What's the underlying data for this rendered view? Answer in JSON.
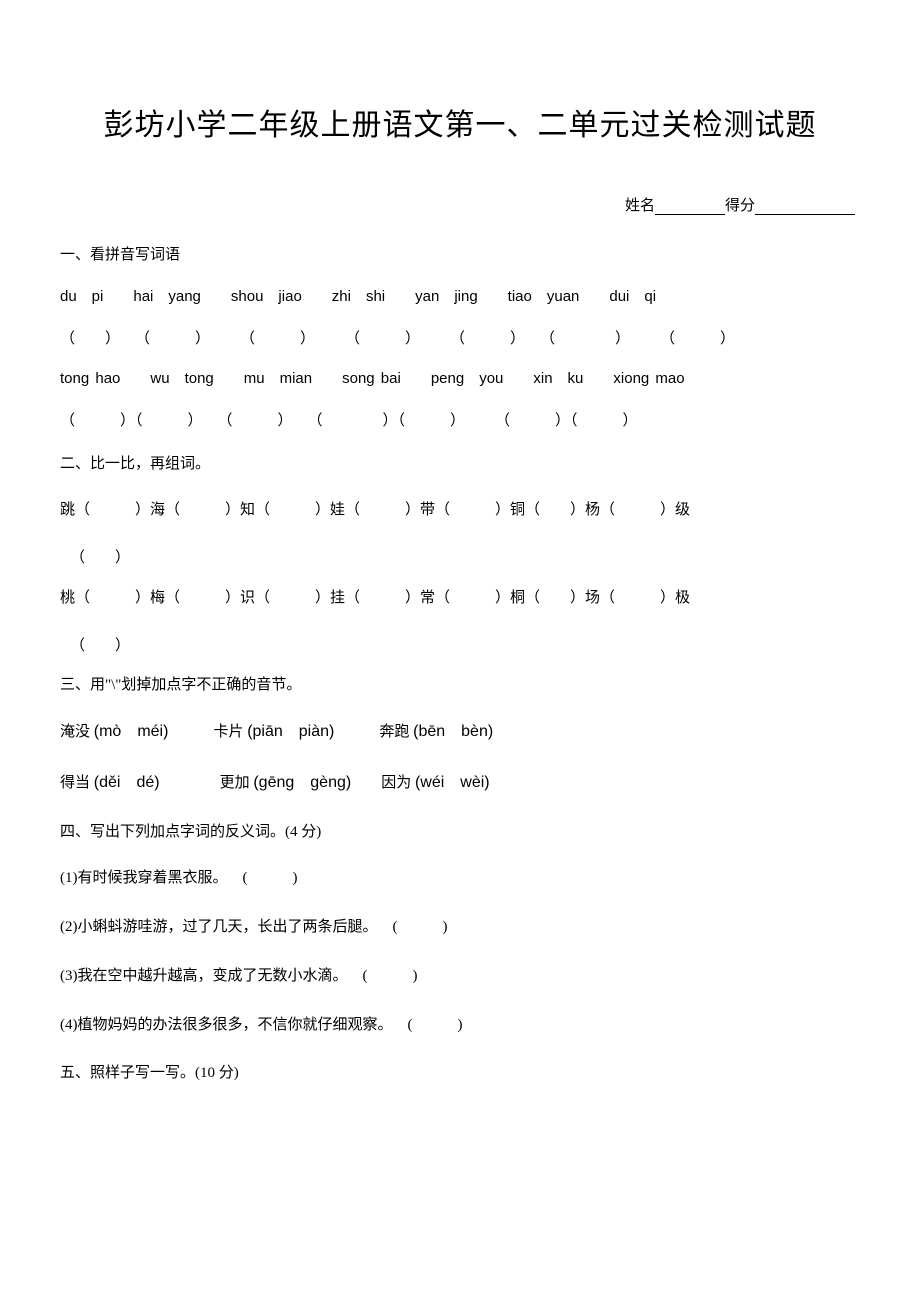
{
  "title": "彭坊小学二年级上册语文第一、二单元过关检测试题",
  "name_score": {
    "name_label": "姓名",
    "score_label": "得分"
  },
  "s1": {
    "heading": "一、看拼音写词语",
    "pinyin_row1": "du pi  hai yang  shou jiao  zhi shi  yan jing  tiao yuan  dui qi",
    "blank_row1": "（  ） （   ）  （   ）  （   ）  （   ） （    ）  （   ）",
    "pinyin_row2": "tong hao  wu tong  mu mian  song bai  peng you  xin ku  xiong mao",
    "blank_row2": "（   ）（   ） （   ） （    ）（   ）  （   ）（   ）"
  },
  "s2": {
    "heading": "二、比一比，再组词。",
    "row1": "跳（   ）海（   ）知（   ）娃（   ）带（   ）铜（  ）杨（   ）级",
    "row1_tail": "（  ）",
    "row2": "桃（   ）梅（   ）识（   ）挂（   ）常（   ）桐（  ）场（   ）极",
    "row2_tail": "（  ）"
  },
  "s3": {
    "heading": "三、用\"\\\"划掉加点字不正确的音节。",
    "line1_a": "淹没 ",
    "line1_a_p": "(mò méi)",
    "line1_b": "   卡片 ",
    "line1_b_p": "(piān piàn)",
    "line1_c": "   奔跑 ",
    "line1_c_p": "(bēn bèn)",
    "line2_a": "得当 ",
    "line2_a_p": "(děi dé)",
    "line2_b": "    更加 ",
    "line2_b_p": "(gēng gèng)",
    "line2_c": "  因为 ",
    "line2_c_p": "(wéi wèi)"
  },
  "s4": {
    "heading": "四、写出下列加点字词的反义词。(4 分)",
    "items": [
      "(1)有时候我穿着黑衣服。 (   )",
      "(2)小蝌蚪游哇游，过了几天，长出了两条后腿。 (   )",
      "(3)我在空中越升越高，变成了无数小水滴。 (   )",
      "(4)植物妈妈的办法很多很多，不信你就仔细观察。 (   )"
    ]
  },
  "s5": {
    "heading": "五、照样子写一写。(10 分)"
  }
}
